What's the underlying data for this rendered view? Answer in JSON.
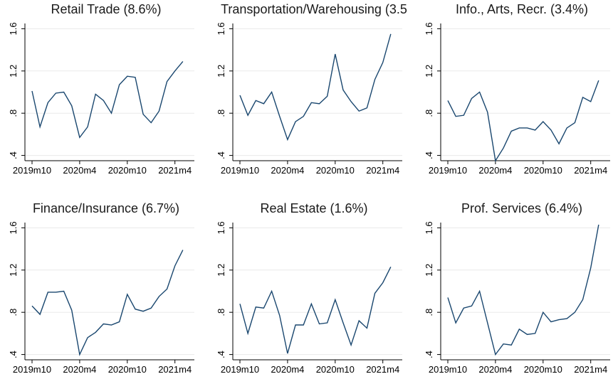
{
  "chart_data": [
    {
      "type": "line",
      "title": "Retail Trade (8.6%)",
      "categories": [
        "2019m10",
        null,
        null,
        null,
        null,
        null,
        "2020m4",
        null,
        null,
        null,
        null,
        null,
        "2020m10",
        null,
        null,
        null,
        null,
        null,
        "2021m4",
        null
      ],
      "series": [
        {
          "color": "#1a476f",
          "values": [
            1.01,
            0.67,
            0.9,
            0.99,
            1.0,
            0.87,
            0.57,
            0.67,
            0.98,
            0.92,
            0.8,
            1.07,
            1.15,
            1.14,
            0.79,
            0.71,
            0.82,
            1.1,
            1.2,
            1.29
          ]
        }
      ],
      "ylim": [
        0.35,
        1.65
      ],
      "yticks": [
        {
          "value": 0.4,
          "label": ".4"
        },
        {
          "value": 0.8,
          "label": ".8"
        },
        1.2,
        1.6
      ],
      "grid": true
    },
    {
      "type": "line",
      "title": "Transportation/Warehousing (3.5",
      "categories": [
        "2019m10",
        null,
        null,
        null,
        null,
        null,
        "2020m4",
        null,
        null,
        null,
        null,
        null,
        "2020m10",
        null,
        null,
        null,
        null,
        null,
        "2021m4",
        null
      ],
      "series": [
        {
          "color": "#1a476f",
          "values": [
            0.97,
            0.78,
            0.92,
            0.89,
            1.0,
            0.77,
            0.55,
            0.72,
            0.77,
            0.9,
            0.89,
            0.96,
            1.36,
            1.02,
            0.91,
            0.82,
            0.85,
            1.12,
            1.28,
            1.55
          ]
        }
      ],
      "ylim": [
        0.35,
        1.65
      ],
      "yticks": [
        {
          "value": 0.4,
          "label": ".4"
        },
        {
          "value": 0.8,
          "label": ".8"
        },
        1.2,
        1.6
      ],
      "grid": true
    },
    {
      "type": "line",
      "title": "Info., Arts, Recr. (3.4%)",
      "categories": [
        "2019m10",
        null,
        null,
        null,
        null,
        null,
        "2020m4",
        null,
        null,
        null,
        null,
        null,
        "2020m10",
        null,
        null,
        null,
        null,
        null,
        "2021m4",
        null
      ],
      "series": [
        {
          "color": "#1a476f",
          "values": [
            0.92,
            0.77,
            0.78,
            0.94,
            1.0,
            0.81,
            0.35,
            0.47,
            0.63,
            0.66,
            0.66,
            0.64,
            0.72,
            0.64,
            0.51,
            0.66,
            0.71,
            0.95,
            0.91,
            1.11
          ]
        }
      ],
      "ylim": [
        0.35,
        1.65
      ],
      "yticks": [
        {
          "value": 0.4,
          "label": ".4"
        },
        {
          "value": 0.8,
          "label": ".8"
        },
        1.2,
        1.6
      ],
      "grid": true
    },
    {
      "type": "line",
      "title": "Finance/Insurance (6.7%)",
      "categories": [
        "2019m10",
        null,
        null,
        null,
        null,
        null,
        "2020m4",
        null,
        null,
        null,
        null,
        null,
        "2020m10",
        null,
        null,
        null,
        null,
        null,
        "2021m4",
        null
      ],
      "series": [
        {
          "color": "#1a476f",
          "values": [
            0.86,
            0.78,
            0.99,
            0.99,
            1.0,
            0.82,
            0.4,
            0.56,
            0.61,
            0.69,
            0.68,
            0.71,
            0.97,
            0.83,
            0.81,
            0.84,
            0.95,
            1.02,
            1.24,
            1.39
          ]
        }
      ],
      "ylim": [
        0.35,
        1.65
      ],
      "yticks": [
        {
          "value": 0.4,
          "label": ".4"
        },
        {
          "value": 0.8,
          "label": ".8"
        },
        1.2,
        1.6
      ],
      "grid": true
    },
    {
      "type": "line",
      "title": "Real Estate (1.6%)",
      "categories": [
        "2019m10",
        null,
        null,
        null,
        null,
        null,
        "2020m4",
        null,
        null,
        null,
        null,
        null,
        "2020m10",
        null,
        null,
        null,
        null,
        null,
        "2021m4",
        null
      ],
      "series": [
        {
          "color": "#1a476f",
          "values": [
            0.88,
            0.6,
            0.85,
            0.84,
            1.0,
            0.77,
            0.41,
            0.68,
            0.68,
            0.88,
            0.69,
            0.7,
            0.92,
            0.7,
            0.49,
            0.72,
            0.65,
            0.98,
            1.08,
            1.23
          ]
        }
      ],
      "ylim": [
        0.35,
        1.65
      ],
      "yticks": [
        {
          "value": 0.4,
          "label": ".4"
        },
        {
          "value": 0.8,
          "label": ".8"
        },
        1.2,
        1.6
      ],
      "grid": true
    },
    {
      "type": "line",
      "title": "Prof. Services (6.4%)",
      "categories": [
        "2019m10",
        null,
        null,
        null,
        null,
        null,
        "2020m4",
        null,
        null,
        null,
        null,
        null,
        "2020m10",
        null,
        null,
        null,
        null,
        null,
        "2021m4",
        null
      ],
      "series": [
        {
          "color": "#1a476f",
          "values": [
            0.94,
            0.7,
            0.84,
            0.86,
            1.0,
            0.7,
            0.4,
            0.5,
            0.49,
            0.64,
            0.59,
            0.6,
            0.8,
            0.71,
            0.73,
            0.74,
            0.8,
            0.92,
            1.22,
            1.63
          ]
        }
      ],
      "ylim": [
        0.35,
        1.65
      ],
      "yticks": [
        {
          "value": 0.4,
          "label": ".4"
        },
        {
          "value": 0.8,
          "label": ".8"
        },
        1.2,
        1.6
      ],
      "grid": true
    }
  ]
}
